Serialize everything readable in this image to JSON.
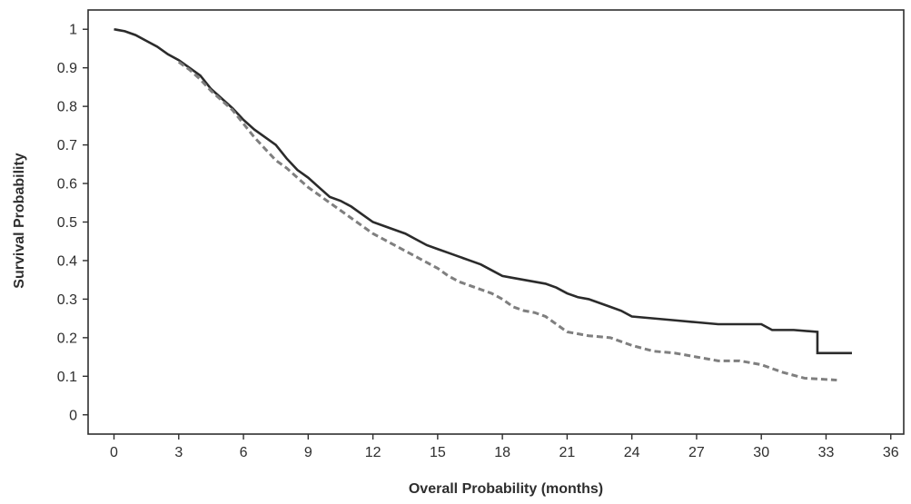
{
  "chart_data": {
    "type": "line",
    "title": "",
    "xlabel": "Overall Probability (months)",
    "ylabel": "Survival Probability",
    "xlim": [
      -1.2,
      36.6
    ],
    "ylim": [
      -0.05,
      1.05
    ],
    "xticks": [
      0,
      3,
      6,
      9,
      12,
      15,
      18,
      21,
      24,
      27,
      30,
      33,
      36
    ],
    "yticks": [
      0,
      0.1,
      0.2,
      0.3,
      0.4,
      0.5,
      0.6,
      0.7,
      0.8,
      0.9,
      1
    ],
    "ytick_labels": [
      "0",
      "0.1",
      "0.2",
      "0.3",
      "0.4",
      "0.5",
      "0.6",
      "0.7",
      "0.8",
      "0.9",
      "1"
    ],
    "grid": false,
    "legend": false,
    "series": [
      {
        "style": "solid",
        "color": "#2b2b2b",
        "points": [
          [
            0,
            1.0
          ],
          [
            0.5,
            0.995
          ],
          [
            1.0,
            0.985
          ],
          [
            1.5,
            0.97
          ],
          [
            2.0,
            0.955
          ],
          [
            2.5,
            0.935
          ],
          [
            3.0,
            0.92
          ],
          [
            3.5,
            0.9
          ],
          [
            4.0,
            0.88
          ],
          [
            4.5,
            0.845
          ],
          [
            5.0,
            0.82
          ],
          [
            5.5,
            0.795
          ],
          [
            6.0,
            0.765
          ],
          [
            6.5,
            0.74
          ],
          [
            7.0,
            0.72
          ],
          [
            7.5,
            0.7
          ],
          [
            8.0,
            0.665
          ],
          [
            8.5,
            0.635
          ],
          [
            9.0,
            0.615
          ],
          [
            9.5,
            0.59
          ],
          [
            10.0,
            0.565
          ],
          [
            10.5,
            0.555
          ],
          [
            11.0,
            0.54
          ],
          [
            11.5,
            0.52
          ],
          [
            12.0,
            0.5
          ],
          [
            12.5,
            0.49
          ],
          [
            13.0,
            0.48
          ],
          [
            13.5,
            0.47
          ],
          [
            14.0,
            0.455
          ],
          [
            14.5,
            0.44
          ],
          [
            15.0,
            0.43
          ],
          [
            15.5,
            0.42
          ],
          [
            16.0,
            0.41
          ],
          [
            16.5,
            0.4
          ],
          [
            17.0,
            0.39
          ],
          [
            17.5,
            0.375
          ],
          [
            18.0,
            0.36
          ],
          [
            18.5,
            0.355
          ],
          [
            19.0,
            0.35
          ],
          [
            19.5,
            0.345
          ],
          [
            20.0,
            0.34
          ],
          [
            20.5,
            0.33
          ],
          [
            21.0,
            0.315
          ],
          [
            21.5,
            0.305
          ],
          [
            22.0,
            0.3
          ],
          [
            22.5,
            0.29
          ],
          [
            23.0,
            0.28
          ],
          [
            23.5,
            0.27
          ],
          [
            24.0,
            0.255
          ],
          [
            25.0,
            0.25
          ],
          [
            26.0,
            0.245
          ],
          [
            27.0,
            0.24
          ],
          [
            28.0,
            0.235
          ],
          [
            29.0,
            0.235
          ],
          [
            30.0,
            0.235
          ],
          [
            30.5,
            0.22
          ],
          [
            31.5,
            0.22
          ],
          [
            32.6,
            0.215
          ],
          [
            32.6,
            0.16
          ],
          [
            34.2,
            0.16
          ]
        ]
      },
      {
        "style": "dashed",
        "color": "#7f7f7f",
        "points": [
          [
            3.0,
            0.915
          ],
          [
            3.5,
            0.895
          ],
          [
            4.0,
            0.87
          ],
          [
            4.5,
            0.84
          ],
          [
            5.0,
            0.815
          ],
          [
            5.5,
            0.79
          ],
          [
            6.0,
            0.755
          ],
          [
            6.5,
            0.72
          ],
          [
            7.0,
            0.69
          ],
          [
            7.5,
            0.66
          ],
          [
            8.0,
            0.64
          ],
          [
            8.5,
            0.615
          ],
          [
            9.0,
            0.59
          ],
          [
            9.5,
            0.57
          ],
          [
            10.0,
            0.55
          ],
          [
            10.5,
            0.53
          ],
          [
            11.0,
            0.51
          ],
          [
            11.5,
            0.49
          ],
          [
            12.0,
            0.47
          ],
          [
            12.5,
            0.455
          ],
          [
            13.0,
            0.44
          ],
          [
            13.5,
            0.425
          ],
          [
            14.0,
            0.41
          ],
          [
            14.5,
            0.395
          ],
          [
            15.0,
            0.38
          ],
          [
            15.5,
            0.36
          ],
          [
            16.0,
            0.345
          ],
          [
            16.5,
            0.335
          ],
          [
            17.0,
            0.325
          ],
          [
            17.5,
            0.315
          ],
          [
            18.0,
            0.3
          ],
          [
            18.5,
            0.28
          ],
          [
            19.0,
            0.27
          ],
          [
            19.5,
            0.265
          ],
          [
            20.0,
            0.255
          ],
          [
            20.5,
            0.235
          ],
          [
            21.0,
            0.215
          ],
          [
            22.0,
            0.205
          ],
          [
            23.0,
            0.2
          ],
          [
            24.0,
            0.18
          ],
          [
            25.0,
            0.165
          ],
          [
            26.0,
            0.16
          ],
          [
            27.0,
            0.15
          ],
          [
            28.0,
            0.14
          ],
          [
            29.0,
            0.14
          ],
          [
            30.0,
            0.13
          ],
          [
            31.0,
            0.11
          ],
          [
            32.0,
            0.095
          ],
          [
            33.5,
            0.09
          ]
        ]
      }
    ]
  }
}
